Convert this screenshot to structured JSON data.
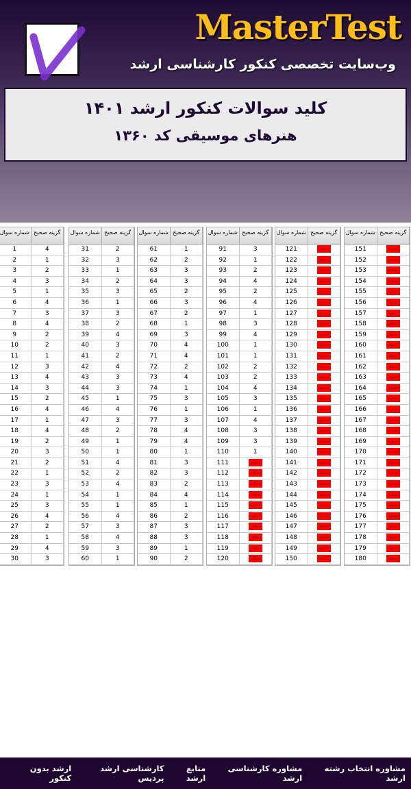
{
  "header": {
    "brand": "MasterTest",
    "tagline": "وب‌سایت تخصصی کنکور کارشناسی ارشد",
    "logo": "purple-checkmark-box"
  },
  "title": {
    "line1": "کلید سوالات کنکور ارشد ۱۴۰۱",
    "line2": "هنرهای موسیقی کد ۱۳۶۰"
  },
  "table": {
    "col_number": "شماره سوال",
    "col_answer": "گزینه صحیح",
    "blank_label": "سفید",
    "blank_color": "#ff0000",
    "blocks": [
      {
        "start": 1,
        "answers": [
          "4",
          "1",
          "2",
          "3",
          "1",
          "4",
          "3",
          "4",
          "2",
          "2",
          "1",
          "3",
          "4",
          "3",
          "2",
          "4",
          "1",
          "4",
          "2",
          "3",
          "2",
          "1",
          "3",
          "1",
          "3",
          "4",
          "2",
          "1",
          "4",
          "3"
        ]
      },
      {
        "start": 31,
        "answers": [
          "2",
          "3",
          "1",
          "2",
          "3",
          "1",
          "3",
          "2",
          "4",
          "3",
          "2",
          "4",
          "3",
          "3",
          "1",
          "4",
          "3",
          "2",
          "1",
          "1",
          "4",
          "2",
          "4",
          "1",
          "1",
          "4",
          "3",
          "4",
          "3",
          "1"
        ]
      },
      {
        "start": 61,
        "answers": [
          "1",
          "2",
          "3",
          "3",
          "2",
          "3",
          "2",
          "1",
          "3",
          "4",
          "4",
          "2",
          "4",
          "1",
          "3",
          "1",
          "3",
          "4",
          "4",
          "1",
          "3",
          "3",
          "2",
          "4",
          "1",
          "2",
          "3",
          "3",
          "1",
          "2"
        ]
      },
      {
        "start": 91,
        "answers": [
          "3",
          "1",
          "2",
          "4",
          "2",
          "4",
          "1",
          "3",
          "4",
          "1",
          "1",
          "2",
          "2",
          "4",
          "3",
          "1",
          "4",
          "3",
          "3",
          "1",
          "سفید",
          "سفید",
          "سفید",
          "سفید",
          "سفید",
          "سفید",
          "سفید",
          "سفید",
          "سفید",
          "سفید"
        ]
      },
      {
        "start": 121,
        "answers": [
          "سفید",
          "سفید",
          "سفید",
          "سفید",
          "سفید",
          "سفید",
          "سفید",
          "سفید",
          "سفید",
          "سفید",
          "سفید",
          "سفید",
          "سفید",
          "سفید",
          "سفید",
          "سفید",
          "سفید",
          "سفید",
          "سفید",
          "سفید",
          "سفید",
          "سفید",
          "سفید",
          "سفید",
          "سفید",
          "سفید",
          "سفید",
          "سفید",
          "سفید",
          "سفید"
        ]
      },
      {
        "start": 151,
        "answers": [
          "سفید",
          "سفید",
          "سفید",
          "سفید",
          "سفید",
          "سفید",
          "سفید",
          "سفید",
          "سفید",
          "سفید",
          "سفید",
          "سفید",
          "سفید",
          "سفید",
          "سفید",
          "سفید",
          "سفید",
          "سفید",
          "سفید",
          "سفید",
          "سفید",
          "سفید",
          "سفید",
          "سفید",
          "سفید",
          "سفید",
          "سفید",
          "سفید",
          "سفید",
          "سفید"
        ]
      }
    ]
  },
  "footer": {
    "links": [
      "ارشد بدون کنکور",
      "کارشناسی ارشد پردیس",
      "منابع ارشد",
      "مشاوره کارشناسی ارشد",
      "مشاوره انتخاب رشته ارشد"
    ]
  }
}
